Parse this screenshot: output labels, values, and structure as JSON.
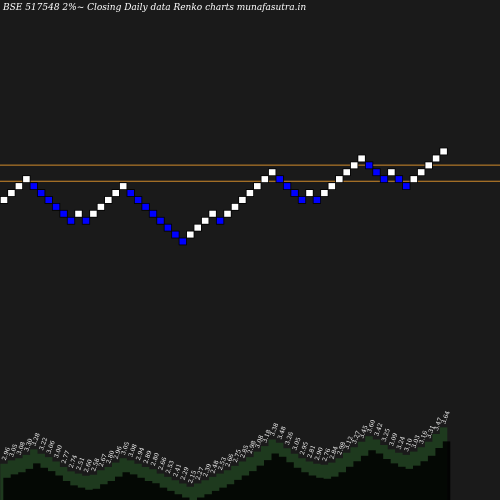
{
  "chart_data": {
    "type": "renko",
    "title": "BSE 517548  2%~  Closing Daily data  Renko  charts munafasutra.in",
    "colors": {
      "background": "#1a1a1a",
      "up_brick": "#ffffff",
      "down_brick": "#0000ff",
      "level_line": "#d08a2a",
      "volume_fill": "#1e3a1e",
      "volume_shadow": "#000000"
    },
    "levels": [
      5.63,
      5.21
    ],
    "bricks": [
      {
        "label": "2.96",
        "value": 4.91,
        "dir": "up"
      },
      {
        "label": "3.05",
        "value": 5.04,
        "dir": "up"
      },
      {
        "label": "3.08",
        "value": 5.17,
        "dir": "up"
      },
      {
        "label": "3.30",
        "value": 5.3,
        "dir": "up"
      },
      {
        "label": "3.28",
        "value": 5.17,
        "dir": "down"
      },
      {
        "label": "3.22",
        "value": 5.04,
        "dir": "down"
      },
      {
        "label": "3.06",
        "value": 4.91,
        "dir": "down"
      },
      {
        "label": "3.00",
        "value": 4.78,
        "dir": "down"
      },
      {
        "label": "2.77",
        "value": 4.65,
        "dir": "down"
      },
      {
        "label": "2.74",
        "value": 4.52,
        "dir": "down"
      },
      {
        "label": "2.51",
        "value": 4.65,
        "dir": "up"
      },
      {
        "label": "2.60",
        "value": 4.52,
        "dir": "down"
      },
      {
        "label": "2.58",
        "value": 4.65,
        "dir": "up"
      },
      {
        "label": "2.67",
        "value": 4.78,
        "dir": "up"
      },
      {
        "label": "2.80",
        "value": 4.91,
        "dir": "up"
      },
      {
        "label": "2.96",
        "value": 5.04,
        "dir": "up"
      },
      {
        "label": "3.05",
        "value": 5.17,
        "dir": "up"
      },
      {
        "label": "3.08",
        "value": 5.04,
        "dir": "down"
      },
      {
        "label": "2.94",
        "value": 4.91,
        "dir": "down"
      },
      {
        "label": "2.89",
        "value": 4.78,
        "dir": "down"
      },
      {
        "label": "2.80",
        "value": 4.65,
        "dir": "down"
      },
      {
        "label": "2.66",
        "value": 4.52,
        "dir": "down"
      },
      {
        "label": "2.53",
        "value": 4.39,
        "dir": "down"
      },
      {
        "label": "2.41",
        "value": 4.26,
        "dir": "down"
      },
      {
        "label": "2.29",
        "value": 4.13,
        "dir": "down"
      },
      {
        "label": "2.15",
        "value": 4.26,
        "dir": "up"
      },
      {
        "label": "2.27",
        "value": 4.39,
        "dir": "up"
      },
      {
        "label": "2.39",
        "value": 4.52,
        "dir": "up"
      },
      {
        "label": "2.48",
        "value": 4.65,
        "dir": "up"
      },
      {
        "label": "2.53",
        "value": 4.52,
        "dir": "down"
      },
      {
        "label": "2.66",
        "value": 4.65,
        "dir": "up"
      },
      {
        "label": "2.75",
        "value": 4.78,
        "dir": "up"
      },
      {
        "label": "2.85",
        "value": 4.91,
        "dir": "up"
      },
      {
        "label": "2.98",
        "value": 5.04,
        "dir": "up"
      },
      {
        "label": "3.08",
        "value": 5.17,
        "dir": "up"
      },
      {
        "label": "3.18",
        "value": 5.3,
        "dir": "up"
      },
      {
        "label": "3.38",
        "value": 5.43,
        "dir": "up"
      },
      {
        "label": "3.48",
        "value": 5.3,
        "dir": "down"
      },
      {
        "label": "3.26",
        "value": 5.17,
        "dir": "down"
      },
      {
        "label": "3.05",
        "value": 5.04,
        "dir": "down"
      },
      {
        "label": "2.95",
        "value": 4.91,
        "dir": "down"
      },
      {
        "label": "2.81",
        "value": 5.04,
        "dir": "up"
      },
      {
        "label": "2.90",
        "value": 4.91,
        "dir": "down"
      },
      {
        "label": "2.76",
        "value": 5.04,
        "dir": "up"
      },
      {
        "label": "2.84",
        "value": 5.17,
        "dir": "up"
      },
      {
        "label": "2.98",
        "value": 5.3,
        "dir": "up"
      },
      {
        "label": "3.12",
        "value": 5.43,
        "dir": "up"
      },
      {
        "label": "3.27",
        "value": 5.56,
        "dir": "up"
      },
      {
        "label": "3.45",
        "value": 5.69,
        "dir": "up"
      },
      {
        "label": "3.60",
        "value": 5.56,
        "dir": "down"
      },
      {
        "label": "3.42",
        "value": 5.43,
        "dir": "down"
      },
      {
        "label": "3.25",
        "value": 5.3,
        "dir": "down"
      },
      {
        "label": "3.09",
        "value": 5.43,
        "dir": "up"
      },
      {
        "label": "3.24",
        "value": 5.3,
        "dir": "down"
      },
      {
        "label": "3.10",
        "value": 5.17,
        "dir": "down"
      },
      {
        "label": "3.03",
        "value": 5.3,
        "dir": "up"
      },
      {
        "label": "3.16",
        "value": 5.43,
        "dir": "up"
      },
      {
        "label": "3.31",
        "value": 5.56,
        "dir": "up"
      },
      {
        "label": "3.47",
        "value": 5.69,
        "dir": "up"
      },
      {
        "label": "3.64",
        "value": 5.82,
        "dir": "up"
      }
    ],
    "volume": [
      0.33,
      0.36,
      0.38,
      0.41,
      0.46,
      0.42,
      0.39,
      0.35,
      0.3,
      0.26,
      0.24,
      0.22,
      0.23,
      0.27,
      0.3,
      0.34,
      0.38,
      0.36,
      0.33,
      0.3,
      0.28,
      0.24,
      0.21,
      0.18,
      0.15,
      0.12,
      0.15,
      0.18,
      0.21,
      0.24,
      0.27,
      0.31,
      0.35,
      0.39,
      0.44,
      0.49,
      0.55,
      0.52,
      0.47,
      0.42,
      0.38,
      0.35,
      0.33,
      0.32,
      0.34,
      0.38,
      0.43,
      0.48,
      0.53,
      0.58,
      0.55,
      0.5,
      0.46,
      0.43,
      0.41,
      0.44,
      0.48,
      0.53,
      0.6,
      0.66
    ]
  }
}
